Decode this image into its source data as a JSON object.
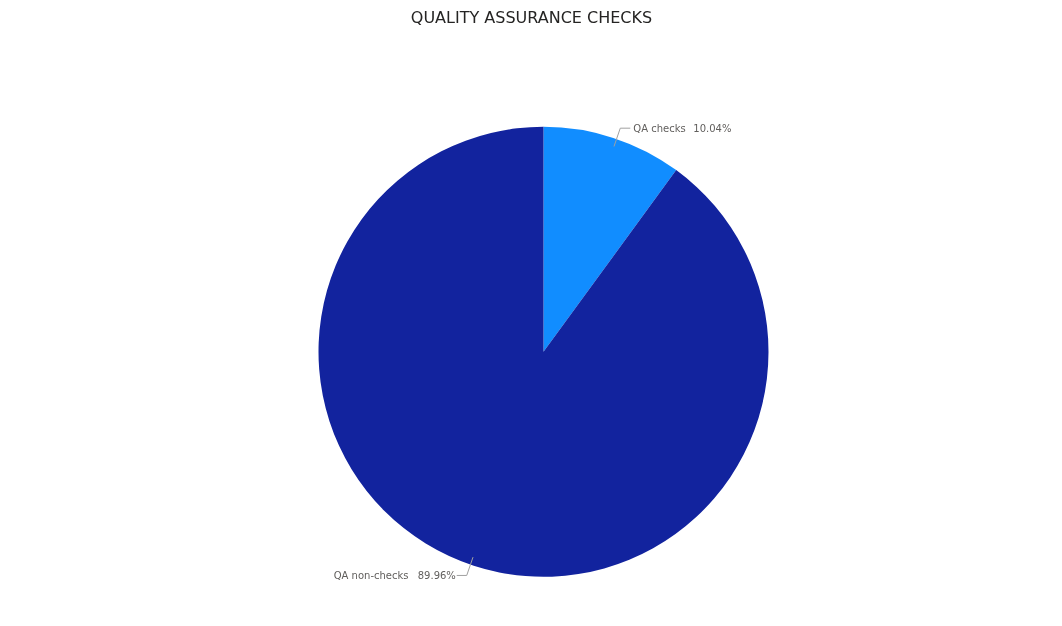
{
  "chart_data": {
    "type": "pie",
    "title": "QUALITY ASSURANCE CHECKS",
    "categories": [
      "QA checks",
      "QA non-checks"
    ],
    "values": [
      10.04,
      89.96
    ],
    "colors": [
      "#118dff",
      "#12239e"
    ],
    "value_labels": [
      "10.04%",
      "89.96%"
    ]
  }
}
